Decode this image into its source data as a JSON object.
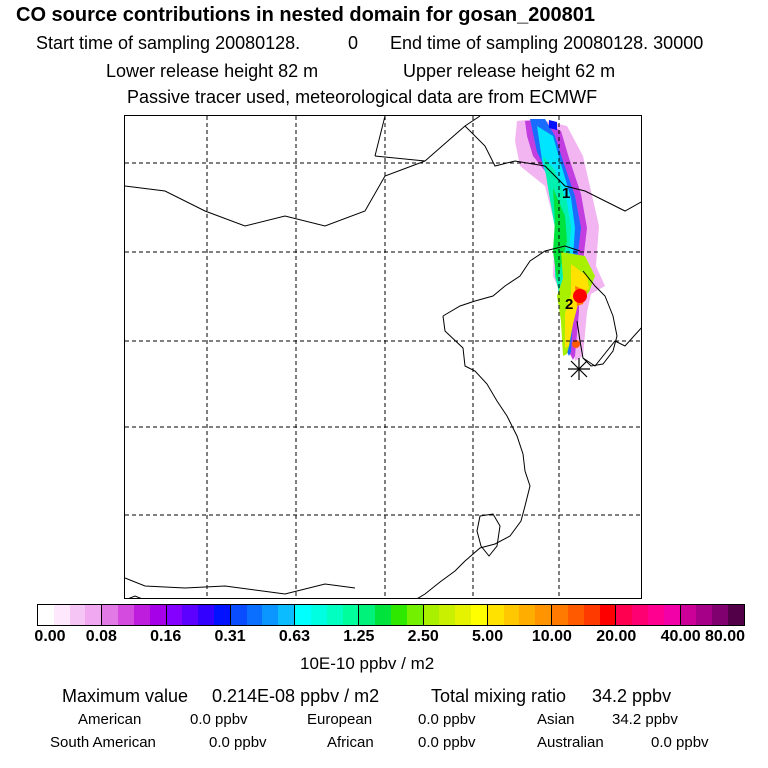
{
  "header": {
    "title": "CO  source contributions in nested domain for gosan_200801",
    "start_label": "Start time of sampling 20080128.",
    "start_value": "0",
    "end_label": "End time of sampling 20080128. 30000",
    "lower_label": "Lower release height   82 m",
    "upper_label": "Upper release height   62 m",
    "tracer_note": "Passive tracer used, meteorological data are from ECMWF"
  },
  "map": {
    "markers": [
      {
        "label": "2"
      },
      {
        "label": "1"
      }
    ],
    "station_icon": "asterisk-station-icon"
  },
  "colorbar": {
    "ticks": [
      "0.00",
      "0.08",
      "0.16",
      "0.31",
      "0.63",
      "1.25",
      "2.50",
      "5.00",
      "10.00",
      "20.00",
      "40.00",
      "80.00"
    ],
    "unit": "10E-10 ppbv / m2",
    "segments": [
      [
        "#ffffff",
        "#fde8fd",
        "#f5c5f5",
        "#f0a8f0"
      ],
      [
        "#e27ae6",
        "#d34bdf",
        "#bf1dde",
        "#a500e8"
      ],
      [
        "#8400ff",
        "#5c00ff",
        "#3300ff",
        "#0012ff"
      ],
      [
        "#0a4dff",
        "#0a6eff",
        "#0b96ff",
        "#0bbcff"
      ],
      [
        "#00ffff",
        "#00ffe0",
        "#00ffc0",
        "#00ff9c"
      ],
      [
        "#00f27a",
        "#00e23c",
        "#2ee800",
        "#72f000"
      ],
      [
        "#a8f000",
        "#c9f000",
        "#e5f200",
        "#ffff00"
      ],
      [
        "#ffe200",
        "#ffc800",
        "#ffae00",
        "#ff9400"
      ],
      [
        "#ff7a00",
        "#ff5a00",
        "#ff3a00",
        "#ff0000"
      ],
      [
        "#ff0050",
        "#ff0072",
        "#ff0090",
        "#f200a8"
      ],
      [
        "#cc0099",
        "#a60088",
        "#800070",
        "#520048"
      ]
    ]
  },
  "stats": {
    "max_label": "Maximum value",
    "max_value": "0.214E-08 ppbv / m2",
    "total_label": "Total mixing ratio",
    "total_value": "34.2 ppbv",
    "regions": [
      {
        "name": "American",
        "value": "0.0 ppbv"
      },
      {
        "name": "European",
        "value": "0.0 ppbv"
      },
      {
        "name": "Asian",
        "value": "34.2 ppbv"
      },
      {
        "name": "South American",
        "value": "0.0 ppbv"
      },
      {
        "name": "African",
        "value": "0.0 ppbv"
      },
      {
        "name": "Australian",
        "value": "0.0 ppbv"
      }
    ]
  }
}
